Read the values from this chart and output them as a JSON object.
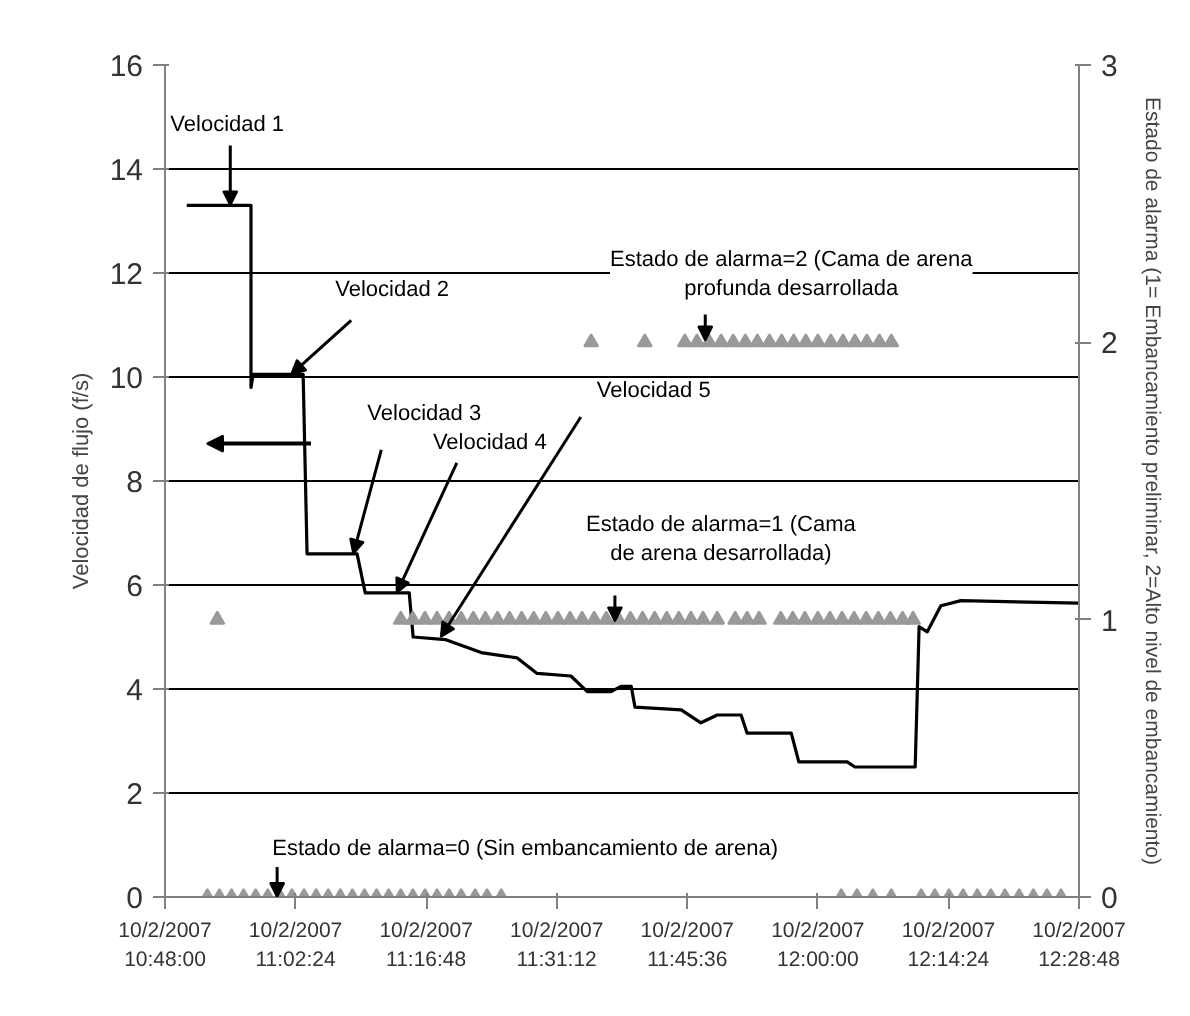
{
  "chart_data": {
    "type": "line",
    "ylabel": "Velocidad de flujo (f/s)",
    "y2label": "Estado de alarma (1= Embancamiento preliminar, 2=Alto nivel de embancamiento)",
    "xlim": [
      "2007-10-02T10:48:00",
      "2007-10-02T12:28:48"
    ],
    "xticks": [
      {
        "value": "2007-10-02T10:48:00",
        "label": "10/2/2007\n10:48:00"
      },
      {
        "value": "2007-10-02T11:02:24",
        "label": "10/2/2007\n11:02:24"
      },
      {
        "value": "2007-10-02T11:16:48",
        "label": "10/2/2007\n11:16:48"
      },
      {
        "value": "2007-10-02T11:31:12",
        "label": "10/2/2007\n11:31:12"
      },
      {
        "value": "2007-10-02T11:45:36",
        "label": "10/2/2007\n11:45:36"
      },
      {
        "value": "2007-10-02T12:00:00",
        "label": "10/2/2007\n12:00:00"
      },
      {
        "value": "2007-10-02T12:14:24",
        "label": "10/2/2007\n12:14:24"
      },
      {
        "value": "2007-10-02T12:28:48",
        "label": "10/2/2007\n12:28:48"
      }
    ],
    "ylim": [
      0,
      16
    ],
    "yticks": [
      0,
      2,
      4,
      6,
      8,
      10,
      12,
      14,
      16
    ],
    "y2lim": [
      0,
      3
    ],
    "y2ticks": [
      0,
      1,
      2,
      3
    ],
    "grid": "y",
    "series": [
      {
        "color": "#000000",
        "marker": "none",
        "line_style": "solid",
        "x": [
          "2007-10-02T10:50:24",
          "2007-10-02T10:57:29",
          "2007-10-02T10:57:29",
          "2007-10-02T10:57:43",
          "2007-10-02T11:03:14",
          "2007-10-02T11:03:40",
          "2007-10-02T11:09:11",
          "2007-10-02T11:10:05",
          "2007-10-02T11:14:56",
          "2007-10-02T11:15:22",
          "2007-10-02T11:18:54",
          "2007-10-02T11:22:52",
          "2007-10-02T11:26:49",
          "2007-10-02T11:29:02",
          "2007-10-02T11:32:46",
          "2007-10-02T11:34:34",
          "2007-10-02T11:37:12",
          "2007-10-02T11:38:17",
          "2007-10-02T11:39:25",
          "2007-10-02T11:39:50",
          "2007-10-02T11:44:56",
          "2007-10-02T11:47:06",
          "2007-10-02T11:48:54",
          "2007-10-02T11:51:32",
          "2007-10-02T11:52:12",
          "2007-10-02T11:57:04",
          "2007-10-02T11:57:54",
          "2007-10-02T12:03:14",
          "2007-10-02T12:04:05",
          "2007-10-02T12:10:44",
          "2007-10-02T12:11:10",
          "2007-10-02T12:12:04",
          "2007-10-02T12:13:34",
          "2007-10-02T12:15:47",
          "2007-10-02T12:28:48"
        ],
        "values": [
          13.3,
          13.3,
          9.8,
          10.05,
          10.05,
          6.6,
          6.6,
          5.85,
          5.85,
          5.0,
          4.95,
          4.7,
          4.6,
          4.3,
          4.25,
          3.95,
          3.95,
          4.05,
          4.05,
          3.65,
          3.6,
          3.35,
          3.5,
          3.5,
          3.15,
          3.15,
          2.6,
          2.6,
          2.5,
          2.5,
          5.2,
          5.1,
          5.6,
          5.7,
          5.65
        ]
      },
      {
        "type": "scatter",
        "axis": "y2",
        "color": "#999999",
        "marker": "triangle",
        "x": [
          "2007-10-02T10:52:40",
          "2007-10-02T10:54:00",
          "2007-10-02T10:55:20",
          "2007-10-02T10:56:40",
          "2007-10-02T10:58:00",
          "2007-10-02T10:59:20",
          "2007-10-02T11:00:40",
          "2007-10-02T11:02:00",
          "2007-10-02T11:03:20",
          "2007-10-02T11:04:40",
          "2007-10-02T11:06:00",
          "2007-10-02T11:07:20",
          "2007-10-02T11:08:40",
          "2007-10-02T11:10:00",
          "2007-10-02T11:11:20",
          "2007-10-02T11:12:40",
          "2007-10-02T11:14:00",
          "2007-10-02T11:15:20",
          "2007-10-02T11:16:40",
          "2007-10-02T11:18:00",
          "2007-10-02T11:19:20",
          "2007-10-02T11:20:40",
          "2007-10-02T11:22:12",
          "2007-10-02T11:23:31",
          "2007-10-02T11:25:05",
          "2007-10-02T12:02:35",
          "2007-10-02T12:04:19",
          "2007-10-02T12:06:04",
          "2007-10-02T12:08:06",
          "2007-10-02T12:11:24",
          "2007-10-02T12:12:54",
          "2007-10-02T12:14:28",
          "2007-10-02T12:16:01",
          "2007-10-02T12:17:35",
          "2007-10-02T12:19:05",
          "2007-10-02T12:20:38",
          "2007-10-02T12:22:12",
          "2007-10-02T12:23:46",
          "2007-10-02T12:25:16",
          "2007-10-02T12:26:49",
          "2007-10-02T10:53:46",
          "2007-10-02T11:14:00",
          "2007-10-02T11:15:20",
          "2007-10-02T11:16:40",
          "2007-10-02T11:18:00",
          "2007-10-02T11:19:20",
          "2007-10-02T11:20:40",
          "2007-10-02T11:22:00",
          "2007-10-02T11:23:20",
          "2007-10-02T11:24:40",
          "2007-10-02T11:26:00",
          "2007-10-02T11:27:20",
          "2007-10-02T11:28:40",
          "2007-10-02T11:30:00",
          "2007-10-02T11:31:20",
          "2007-10-02T11:32:40",
          "2007-10-02T11:34:00",
          "2007-10-02T11:35:20",
          "2007-10-02T11:36:40",
          "2007-10-02T11:38:00",
          "2007-10-02T11:39:20",
          "2007-10-02T11:40:40",
          "2007-10-02T11:42:00",
          "2007-10-02T11:43:20",
          "2007-10-02T11:44:40",
          "2007-10-02T11:46:00",
          "2007-10-02T11:47:20",
          "2007-10-02T11:48:54",
          "2007-10-02T11:50:53",
          "2007-10-02T11:52:12",
          "2007-10-02T11:53:31",
          "2007-10-02T11:55:55",
          "2007-10-02T11:57:14",
          "2007-10-02T11:58:34",
          "2007-10-02T12:00:00",
          "2007-10-02T12:01:20",
          "2007-10-02T12:02:40",
          "2007-10-02T12:04:00",
          "2007-10-02T12:05:20",
          "2007-10-02T12:06:40",
          "2007-10-02T12:08:00",
          "2007-10-02T12:09:20",
          "2007-10-02T12:10:30",
          "2007-10-02T11:35:00",
          "2007-10-02T11:40:55",
          "2007-10-02T11:45:20",
          "2007-10-02T11:46:40",
          "2007-10-02T11:48:00",
          "2007-10-02T11:49:20",
          "2007-10-02T11:50:40",
          "2007-10-02T11:52:00",
          "2007-10-02T11:53:20",
          "2007-10-02T11:54:40",
          "2007-10-02T11:56:00",
          "2007-10-02T11:57:20",
          "2007-10-02T11:58:40",
          "2007-10-02T12:00:00",
          "2007-10-02T12:01:26",
          "2007-10-02T12:02:46",
          "2007-10-02T12:04:05",
          "2007-10-02T12:05:24",
          "2007-10-02T12:06:47",
          "2007-10-02T12:08:06"
        ],
        "values": [
          0,
          0,
          0,
          0,
          0,
          0,
          0,
          0,
          0,
          0,
          0,
          0,
          0,
          0,
          0,
          0,
          0,
          0,
          0,
          0,
          0,
          0,
          0,
          0,
          0,
          0,
          0,
          0,
          0,
          0,
          0,
          0,
          0,
          0,
          0,
          0,
          0,
          0,
          0,
          0,
          1,
          1,
          1,
          1,
          1,
          1,
          1,
          1,
          1,
          1,
          1,
          1,
          1,
          1,
          1,
          1,
          1,
          1,
          1,
          1,
          1,
          1,
          1,
          1,
          1,
          1,
          1,
          1,
          1,
          1,
          1,
          1,
          1,
          1,
          1,
          1,
          1,
          1,
          1,
          1,
          1,
          1,
          1,
          2,
          2,
          2,
          2,
          2,
          2,
          2,
          2,
          2,
          2,
          2,
          2,
          2,
          2,
          2,
          2,
          2,
          2,
          2,
          2
        ]
      }
    ],
    "annotations": [
      {
        "text": "Velocidad  1",
        "x": "2007-10-02T10:55:12",
        "y": 13.3
      },
      {
        "text": "Velocidad  2",
        "x": "2007-10-02T11:01:55",
        "y": 10.05
      },
      {
        "text": "Velocidad  3",
        "x": "2007-10-02T11:08:46",
        "y": 6.6
      },
      {
        "text": "Velocidad  4",
        "x": "2007-10-02T11:13:34",
        "y": 5.85
      },
      {
        "text": "Velocidad  5",
        "x": "2007-10-02T11:18:25",
        "y": 5.0
      },
      {
        "text": "Estado de alarma=2 (Cama de arena\nprofunda desarrollada",
        "x": "2007-10-02T11:47:35",
        "y": 10.7
      },
      {
        "text": "Estado de alarma=1 (Cama\nde arena desarrollada)",
        "x": "2007-10-02T11:37:37",
        "y": 5.3
      },
      {
        "text": "Estado de alarma=0 (Sin embancamiento de arena)",
        "x": "2007-10-02T11:00:22",
        "y": 0
      }
    ]
  }
}
